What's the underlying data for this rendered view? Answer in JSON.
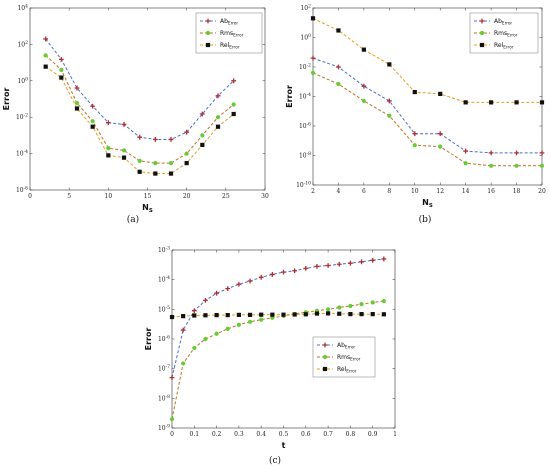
{
  "chart_data": [
    {
      "type": "line",
      "panel_label": "(a)",
      "xlabel": "N",
      "xlabel_sub": "S",
      "ylabel": "Error",
      "scale_y": "log",
      "xlim": [
        0,
        30
      ],
      "ylim_exp": [
        -6,
        4
      ],
      "xticks": [
        "0",
        "5",
        "10",
        "15",
        "20",
        "25",
        "30"
      ],
      "yticks_exp": [
        -6,
        -4,
        -2,
        0,
        2,
        4
      ],
      "legend_position": "top-right",
      "x": [
        2,
        4,
        6,
        8,
        10,
        12,
        14,
        16,
        18,
        20,
        22,
        24,
        26
      ],
      "series": [
        {
          "name": "Ab",
          "name_sub": "Error",
          "color": "#4a6cd4",
          "marker_color": "#b03030",
          "marker": "plus",
          "values": [
            200,
            15,
            0.4,
            0.04,
            0.005,
            0.004,
            0.0008,
            0.0006,
            0.0006,
            0.0015,
            0.015,
            0.15,
            1
          ]
        },
        {
          "name": "Rms",
          "name_sub": "Error",
          "color": "#c07020",
          "marker_color": "#66cc33",
          "marker": "circle",
          "values": [
            25,
            4,
            0.06,
            0.006,
            0.0002,
            0.00015,
            4e-05,
            3e-05,
            3e-05,
            0.0001,
            0.001,
            0.01,
            0.05
          ]
        },
        {
          "name": "Rel",
          "name_sub": "Error",
          "color": "#e0a020",
          "marker_color": "#111111",
          "marker": "square",
          "values": [
            6,
            1.5,
            0.03,
            0.003,
            8e-05,
            6e-05,
            1e-05,
            8e-06,
            8e-06,
            3e-05,
            0.0003,
            0.003,
            0.015
          ]
        }
      ]
    },
    {
      "type": "line",
      "panel_label": "(b)",
      "xlabel": "N",
      "xlabel_sub": "S",
      "ylabel": "Error",
      "scale_y": "log",
      "xlim": [
        2,
        20
      ],
      "ylim_exp": [
        -10,
        2
      ],
      "xticks": [
        "2",
        "4",
        "6",
        "8",
        "10",
        "12",
        "14",
        "16",
        "18",
        "20"
      ],
      "yticks_exp": [
        -10,
        -8,
        -6,
        -4,
        -2,
        0,
        2
      ],
      "legend_position": "top-right",
      "x": [
        2,
        4,
        6,
        8,
        10,
        12,
        14,
        16,
        18,
        20
      ],
      "series": [
        {
          "name": "Ab",
          "name_sub": "Error",
          "color": "#4a6cd4",
          "marker_color": "#b03030",
          "marker": "plus",
          "values": [
            0.04,
            0.01,
            0.0005,
            5e-05,
            3e-07,
            3e-07,
            2e-08,
            1.5e-08,
            1.5e-08,
            1.5e-08
          ]
        },
        {
          "name": "Rms",
          "name_sub": "Error",
          "color": "#c07020",
          "marker_color": "#66cc33",
          "marker": "circle",
          "values": [
            0.004,
            0.0007,
            5e-05,
            5e-06,
            5e-08,
            4e-08,
            3e-09,
            2e-09,
            2e-09,
            2e-09
          ]
        },
        {
          "name": "Rel",
          "name_sub": "Error",
          "color": "#e0a020",
          "marker_color": "#111111",
          "marker": "square",
          "values": [
            20,
            3,
            0.15,
            0.015,
            0.0002,
            0.00015,
            4e-05,
            4e-05,
            4e-05,
            4e-05
          ]
        }
      ]
    },
    {
      "type": "line",
      "panel_label": "(c)",
      "xlabel": "t",
      "ylabel": "Error",
      "scale_y": "log",
      "xlim": [
        0,
        1
      ],
      "ylim_exp": [
        -9,
        -3
      ],
      "xticks": [
        "0",
        "0.1",
        "0.2",
        "0.3",
        "0.4",
        "0.5",
        "0.6",
        "0.7",
        "0.8",
        "0.9",
        "1"
      ],
      "yticks_exp": [
        -9,
        -8,
        -7,
        -6,
        -5,
        -4,
        -3
      ],
      "legend_position": "bottom-center",
      "x": [
        0.0,
        0.05,
        0.1,
        0.15,
        0.2,
        0.25,
        0.3,
        0.35,
        0.4,
        0.45,
        0.5,
        0.55,
        0.6,
        0.65,
        0.7,
        0.75,
        0.8,
        0.85,
        0.9,
        0.95
      ],
      "series": [
        {
          "name": "Ab",
          "name_sub": "Error",
          "color": "#4a6cd4",
          "marker_color": "#b03030",
          "marker": "plus",
          "values": [
            5e-08,
            2e-06,
            9e-06,
            2e-05,
            3.5e-05,
            5e-05,
            7e-05,
            9e-05,
            0.00012,
            0.00015,
            0.00018,
            0.0002,
            0.00024,
            0.00028,
            0.0003,
            0.00033,
            0.00036,
            0.0004,
            0.00045,
            0.0005
          ]
        },
        {
          "name": "Rms",
          "name_sub": "Error",
          "color": "#c07020",
          "marker_color": "#66cc33",
          "marker": "circle",
          "values": [
            2e-09,
            1.5e-07,
            5e-07,
            1e-06,
            1.5e-06,
            2.2e-06,
            3e-06,
            3.8e-06,
            4.5e-06,
            5.2e-06,
            6e-06,
            7e-06,
            8e-06,
            9e-06,
            1e-05,
            1.15e-05,
            1.3e-05,
            1.5e-05,
            1.7e-05,
            1.9e-05
          ]
        },
        {
          "name": "Rel",
          "name_sub": "Error",
          "color": "#e0a020",
          "marker_color": "#111111",
          "marker": "square",
          "values": [
            5.5e-06,
            5.9e-06,
            6.2e-06,
            6.3e-06,
            6.4e-06,
            6.4e-06,
            6.5e-06,
            6.5e-06,
            6.6e-06,
            6.6e-06,
            6.6e-06,
            6.7e-06,
            6.8e-06,
            7.2e-06,
            7.3e-06,
            7.1e-06,
            6.9e-06,
            6.9e-06,
            6.9e-06,
            6.8e-06
          ]
        }
      ]
    }
  ]
}
